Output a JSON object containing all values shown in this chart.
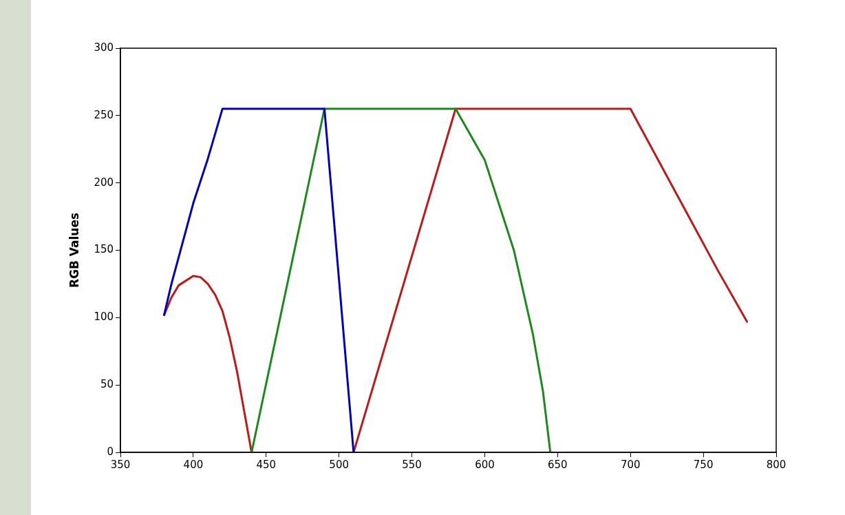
{
  "chart_data": {
    "type": "line",
    "ylabel": "RGB Values",
    "xlim": [
      350,
      800
    ],
    "xticks": [
      350,
      400,
      450,
      500,
      550,
      600,
      650,
      700,
      750,
      800
    ],
    "ylim": [
      0,
      300
    ],
    "yticks": [
      0,
      50,
      100,
      150,
      200,
      250,
      300
    ],
    "grid": false,
    "legend": false,
    "marker": "none",
    "line_style": "solid",
    "series": [
      {
        "color": "#0000c0",
        "x": [
          380,
          385,
          400,
          410,
          420,
          490,
          500,
          510
        ],
        "values": [
          102,
          125,
          185,
          218,
          255,
          255,
          128,
          0
        ]
      },
      {
        "color": "#1a8a1a",
        "x": [
          440,
          490,
          580,
          600,
          620,
          633,
          640,
          645
        ],
        "values": [
          0,
          255,
          255,
          217,
          150,
          88,
          45,
          0
        ]
      },
      {
        "color": "#c01818",
        "x": [
          380,
          385,
          390,
          400,
          405,
          410,
          415,
          420,
          425,
          430,
          435,
          440
        ],
        "values": [
          102,
          115,
          124,
          131,
          130,
          125,
          117,
          105,
          85,
          60,
          30,
          0
        ]
      },
      {
        "color": "#c01818",
        "x": [
          510,
          580,
          700,
          720,
          740,
          760,
          780
        ],
        "values": [
          0,
          255,
          255,
          215,
          175,
          135,
          97
        ]
      }
    ]
  }
}
